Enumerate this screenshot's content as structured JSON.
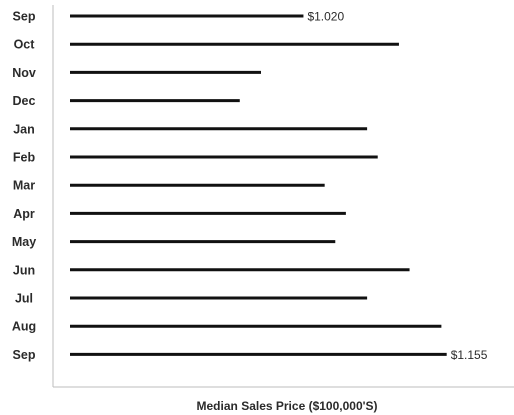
{
  "chart_data": {
    "type": "bar",
    "orientation": "horizontal",
    "categories": [
      "Sep",
      "Oct",
      "Nov",
      "Dec",
      "Jan",
      "Feb",
      "Mar",
      "Apr",
      "May",
      "Jun",
      "Jul",
      "Aug",
      "Sep"
    ],
    "values": [
      1.02,
      1.11,
      0.98,
      0.96,
      1.08,
      1.09,
      1.04,
      1.06,
      1.05,
      1.12,
      1.08,
      1.15,
      1.155
    ],
    "data_labels": [
      "$1.020",
      "",
      "",
      "",
      "",
      "",
      "",
      "",
      "",
      "",
      "",
      "",
      "$1.155"
    ],
    "xlabel": "Median Sales Price ($100,000'S)",
    "ylabel": "",
    "xlim": [
      0.8,
      1.16
    ],
    "grid": false,
    "bar_color": "#111111"
  }
}
